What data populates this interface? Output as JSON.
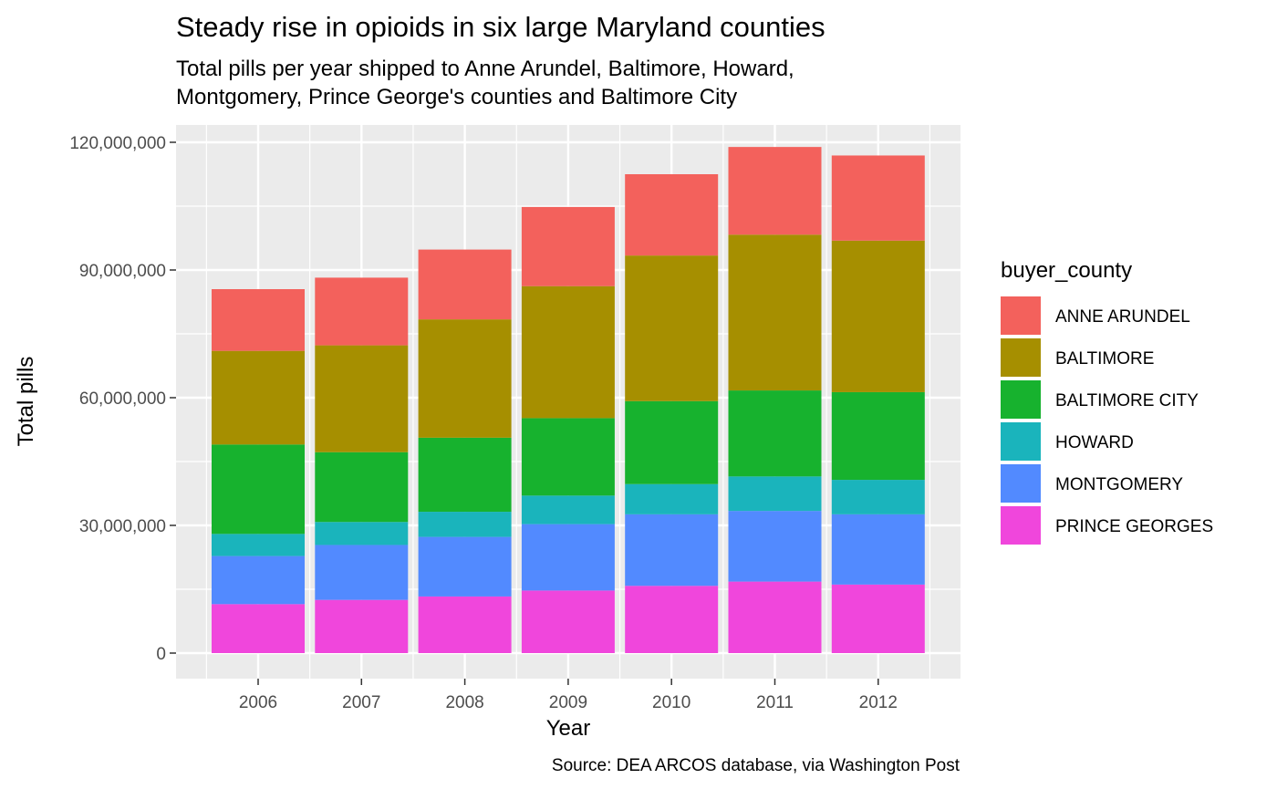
{
  "chart_data": {
    "type": "bar",
    "stacked": true,
    "title": "Steady rise in opioids in six large Maryland counties",
    "subtitle": [
      "Total pills per year shipped to Anne Arundel, Baltimore, Howard,",
      "Montgomery, Prince George's counties and Baltimore City"
    ],
    "xlabel": "Year",
    "ylabel": "Total pills",
    "caption": "Source: DEA ARCOS database, via Washington Post",
    "categories": [
      "2006",
      "2007",
      "2008",
      "2009",
      "2010",
      "2011",
      "2012"
    ],
    "ylim": [
      0,
      120000000
    ],
    "yticks": [
      0,
      30000000,
      60000000,
      90000000,
      120000000
    ],
    "ytick_labels": [
      "0",
      "30,000,000",
      "60,000,000",
      "90,000,000",
      "120,000,000"
    ],
    "grid": true,
    "legend": {
      "title": "buyer_county",
      "position": "right"
    },
    "series": [
      {
        "name": "PRINCE GEORGES",
        "color": "#F046DC",
        "values": [
          11500000,
          12500000,
          13300000,
          14700000,
          15800000,
          16800000,
          16100000
        ]
      },
      {
        "name": "MONTGOMERY",
        "color": "#528AFF",
        "values": [
          11300000,
          12900000,
          14000000,
          15600000,
          16800000,
          16600000,
          16500000
        ]
      },
      {
        "name": "HOWARD",
        "color": "#1AB4BC",
        "values": [
          5200000,
          5400000,
          5900000,
          6700000,
          7100000,
          8100000,
          8100000
        ]
      },
      {
        "name": "BALTIMORE CITY",
        "color": "#17B22E",
        "values": [
          21000000,
          16400000,
          17400000,
          18200000,
          19500000,
          20200000,
          20600000
        ]
      },
      {
        "name": "BALTIMORE",
        "color": "#A68F00",
        "values": [
          22000000,
          25100000,
          27800000,
          31000000,
          34200000,
          36600000,
          35600000
        ]
      },
      {
        "name": "ANNE ARUNDEL",
        "color": "#F3615C",
        "values": [
          14500000,
          15900000,
          16400000,
          18600000,
          19100000,
          20600000,
          20000000
        ]
      }
    ],
    "legend_order": [
      "ANNE ARUNDEL",
      "BALTIMORE",
      "BALTIMORE CITY",
      "HOWARD",
      "MONTGOMERY",
      "PRINCE GEORGES"
    ]
  }
}
